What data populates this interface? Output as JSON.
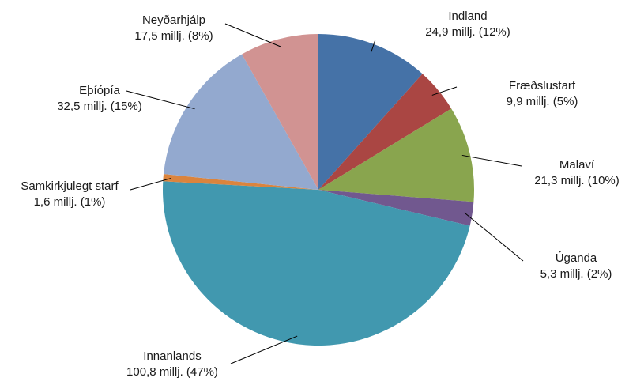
{
  "chart_data": {
    "type": "pie",
    "start_angle_deg": 0,
    "direction": "clockwise",
    "slices": [
      {
        "name": "Indland",
        "value": 24.9,
        "value_label": "24,9 millj. (12%)",
        "color": "#4572A7"
      },
      {
        "name": "Fræðslustarf",
        "value": 9.9,
        "value_label": "9,9 millj. (5%)",
        "color": "#AA4643"
      },
      {
        "name": "Malaví",
        "value": 21.3,
        "value_label": "21,3 millj. (10%)",
        "color": "#89A54E"
      },
      {
        "name": "Úganda",
        "value": 5.3,
        "value_label": "5,3 millj. (2%)",
        "color": "#71588F"
      },
      {
        "name": "Innanlands",
        "value": 100.8,
        "value_label": "100,8 millj. (47%)",
        "color": "#4198AF"
      },
      {
        "name": "Samkirkjulegt starf",
        "value": 1.6,
        "value_label": "1,6 millj. (1%)",
        "color": "#DB843D"
      },
      {
        "name": "Eþíópía",
        "value": 32.5,
        "value_label": "32,5 millj. (15%)",
        "color": "#93A9CF"
      },
      {
        "name": "Neyðarhjálp",
        "value": 17.5,
        "value_label": "17,5 millj. (8%)",
        "color": "#D19392"
      }
    ]
  }
}
